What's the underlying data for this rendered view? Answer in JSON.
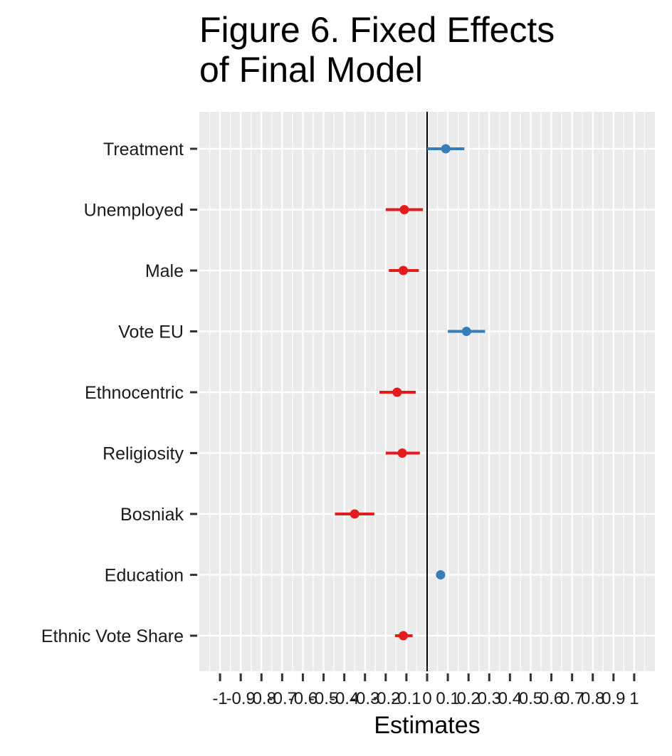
{
  "chart_data": {
    "type": "scatter",
    "title_lines": [
      "Figure 6. Fixed Effects",
      "of Final Model"
    ],
    "xlabel": "Estimates",
    "ylabel": "",
    "xlim": [
      -1.1,
      1.1
    ],
    "x_tick_values": [
      -1,
      -0.9,
      -0.8,
      -0.7,
      -0.6,
      -0.5,
      -0.4,
      -0.3,
      -0.2,
      -0.1,
      0,
      0.1,
      0.2,
      0.3,
      0.4,
      0.5,
      0.6,
      0.7,
      0.8,
      0.9,
      1
    ],
    "x_tick_labels": [
      "-1",
      "-0.9",
      "-0.8",
      "-0.7",
      "-0.6",
      "-0.5",
      "-0.4",
      "-0.3",
      "-0.2",
      "-0.1",
      "0",
      "0.1",
      "0.2",
      "0.3",
      "0.4",
      "0.5",
      "0.6",
      "0.7",
      "0.8",
      "0.9",
      "1"
    ],
    "reference_line_x": 0,
    "grid": true,
    "colors": {
      "positive": "#377EB8",
      "negative": "#E41A1C",
      "panel": "#EBEBEB",
      "grid": "#FFFFFF"
    },
    "terms": [
      {
        "label": "Treatment",
        "estimate": 0.09,
        "low": 0.0,
        "high": 0.18,
        "sign": "positive"
      },
      {
        "label": "Unemployed",
        "estimate": -0.11,
        "low": -0.2,
        "high": -0.02,
        "sign": "negative"
      },
      {
        "label": "Male",
        "estimate": -0.115,
        "low": -0.185,
        "high": -0.04,
        "sign": "negative"
      },
      {
        "label": "Vote EU",
        "estimate": 0.19,
        "low": 0.1,
        "high": 0.28,
        "sign": "positive"
      },
      {
        "label": "Ethnocentric",
        "estimate": -0.145,
        "low": -0.23,
        "high": -0.055,
        "sign": "negative"
      },
      {
        "label": "Religiosity",
        "estimate": -0.12,
        "low": -0.2,
        "high": -0.035,
        "sign": "negative"
      },
      {
        "label": "Bosniak",
        "estimate": -0.35,
        "low": -0.445,
        "high": -0.255,
        "sign": "negative"
      },
      {
        "label": "Education",
        "estimate": 0.065,
        "low": 0.06,
        "high": 0.07,
        "sign": "positive"
      },
      {
        "label": "Ethnic Vote Share",
        "estimate": -0.115,
        "low": -0.155,
        "high": -0.07,
        "sign": "negative"
      }
    ]
  }
}
